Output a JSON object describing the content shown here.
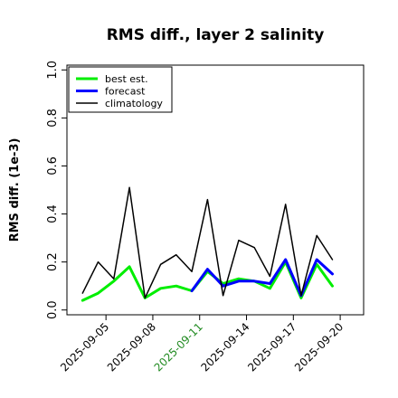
{
  "chart_data": {
    "type": "line",
    "title": "RMS diff., layer 2 salinity",
    "ylabel": "RMS diff. (1e-3)",
    "ylim": [
      -0.02,
      1.02
    ],
    "yticks": [
      0.0,
      0.2,
      0.4,
      0.6,
      0.8,
      1.0
    ],
    "ytick_labels": [
      "0.0",
      "0.2",
      "0.4",
      "0.6",
      "0.8",
      "1.0"
    ],
    "x": [
      3.5,
      4.5,
      5.5,
      6.5,
      7.5,
      8.5,
      9.5,
      10.5,
      11.5,
      12.5,
      13.5,
      14.5,
      15.5,
      16.5,
      17.5,
      18.5,
      19.5,
      20.5
    ],
    "xlim": [
      2.5,
      21.5
    ],
    "xticks": [
      5,
      8,
      11,
      14,
      17,
      20
    ],
    "xtick_labels": [
      "2025-09-05",
      "2025-09-08",
      "2025-09-11",
      "2025-09-14",
      "2025-09-17",
      "2025-09-20"
    ],
    "highlight_tick": "2025-09-11",
    "highlight_color": "#228B22",
    "legend_position": "upper-left",
    "series": [
      {
        "name": "best est.",
        "color": "#00ee00",
        "width": 3,
        "values": [
          0.04,
          0.07,
          0.12,
          0.18,
          0.05,
          0.09,
          0.1,
          0.08,
          0.16,
          0.11,
          0.13,
          0.12,
          0.09,
          0.2,
          0.05,
          0.19,
          0.1,
          null
        ]
      },
      {
        "name": "forecast",
        "color": "#0000ff",
        "width": 3,
        "values": [
          null,
          null,
          null,
          null,
          null,
          null,
          null,
          0.08,
          0.17,
          0.1,
          0.12,
          0.12,
          0.11,
          0.21,
          0.06,
          0.21,
          0.15,
          null
        ]
      },
      {
        "name": "climatology",
        "color": "#000000",
        "width": 1.5,
        "values": [
          0.07,
          0.2,
          0.13,
          0.51,
          0.05,
          0.19,
          0.23,
          0.16,
          0.46,
          0.06,
          0.29,
          0.26,
          0.14,
          0.44,
          0.06,
          0.31,
          0.21,
          null
        ]
      }
    ]
  }
}
